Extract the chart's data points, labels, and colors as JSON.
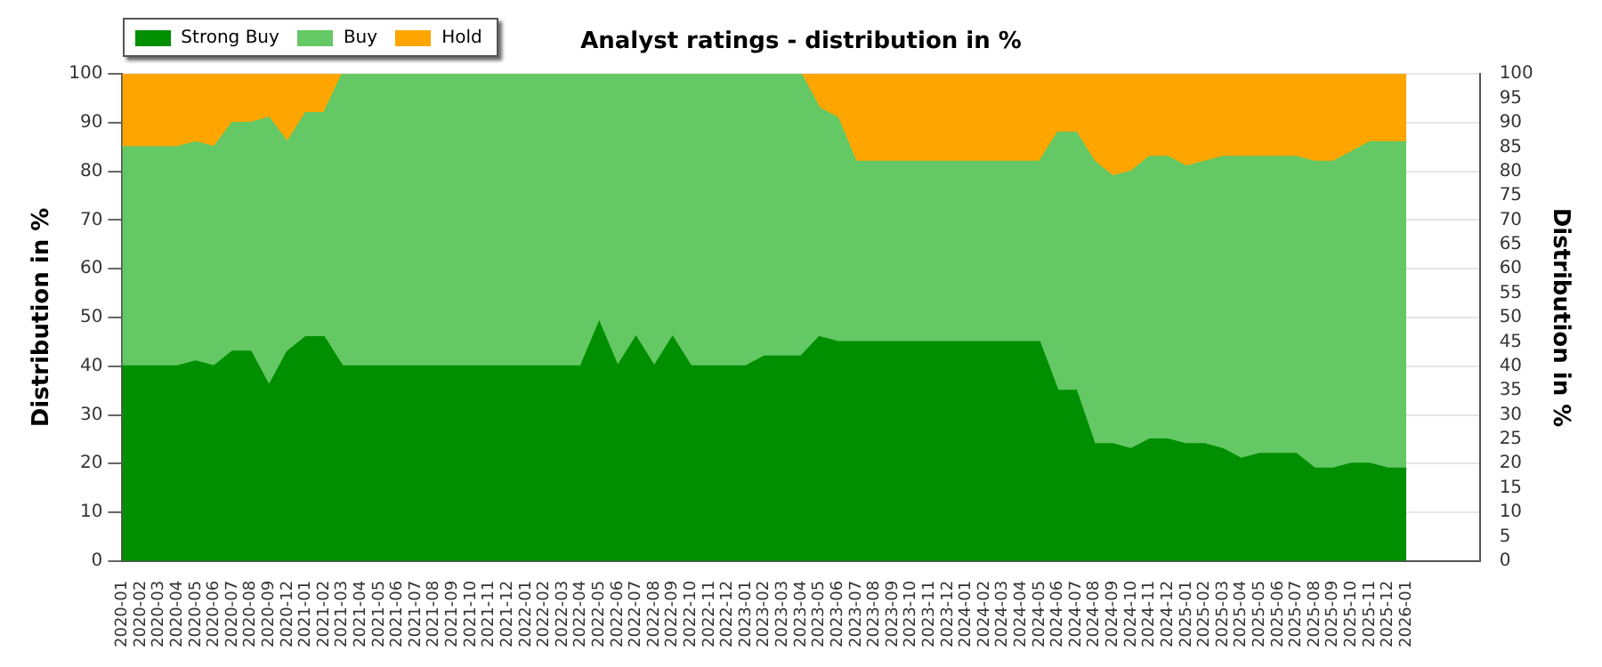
{
  "chart_data": {
    "type": "area",
    "title": "Analyst ratings - distribution in %",
    "ylabel": "Distribution in %",
    "y2label": "Distribution in %",
    "categories": [
      "2020-01",
      "2020-02",
      "2020-03",
      "2020-04",
      "2020-05",
      "2020-06",
      "2020-07",
      "2020-08",
      "2020-09",
      "2020-12",
      "2021-01",
      "2021-02",
      "2021-03",
      "2021-04",
      "2021-05",
      "2021-06",
      "2021-07",
      "2021-08",
      "2021-09",
      "2021-10",
      "2021-11",
      "2021-12",
      "2022-01",
      "2022-02",
      "2022-03",
      "2022-04",
      "2022-05",
      "2022-06",
      "2022-07",
      "2022-08",
      "2022-09",
      "2022-10",
      "2022-11",
      "2022-12",
      "2023-01",
      "2023-02",
      "2023-03",
      "2023-04",
      "2023-05",
      "2023-06",
      "2023-07",
      "2023-08",
      "2023-09",
      "2023-10",
      "2023-11",
      "2023-12",
      "2024-01",
      "2024-02",
      "2024-03",
      "2024-04",
      "2024-05",
      "2024-06",
      "2024-07",
      "2024-08",
      "2024-09",
      "2024-10",
      "2024-11",
      "2024-12",
      "2025-01",
      "2025-02",
      "2025-03",
      "2025-04",
      "2025-05",
      "2025-06",
      "2025-07",
      "2025-08",
      "2025-09",
      "2025-10",
      "2025-11",
      "2025-12",
      "2026-01"
    ],
    "series": [
      {
        "name": "Strong Buy",
        "color": "#008f00",
        "values": [
          40,
          40,
          40,
          40,
          41,
          40,
          43,
          43,
          36,
          43,
          46,
          46,
          40,
          40,
          40,
          40,
          40,
          40,
          40,
          40,
          40,
          40,
          40,
          40,
          40,
          40,
          49,
          40,
          46,
          40,
          46,
          40,
          40,
          40,
          40,
          42,
          42,
          42,
          46,
          45,
          45,
          45,
          45,
          45,
          45,
          45,
          45,
          45,
          45,
          45,
          45,
          35,
          35,
          24,
          24,
          23,
          25,
          25,
          24,
          24,
          23,
          21,
          22,
          22,
          22,
          19,
          19,
          20,
          20,
          19,
          19
        ]
      },
      {
        "name": "Buy",
        "color": "#64c864",
        "values": [
          45,
          45,
          45,
          45,
          45,
          45,
          47,
          47,
          55,
          43,
          46,
          46,
          60,
          60,
          60,
          60,
          60,
          60,
          60,
          60,
          60,
          60,
          60,
          60,
          60,
          60,
          51,
          60,
          54,
          60,
          54,
          60,
          60,
          60,
          60,
          58,
          58,
          58,
          47,
          46,
          37,
          37,
          37,
          37,
          37,
          37,
          37,
          37,
          37,
          37,
          37,
          53,
          53,
          58,
          55,
          57,
          58,
          58,
          57,
          58,
          60,
          62,
          61,
          61,
          61,
          63,
          63,
          64,
          66,
          67,
          67
        ]
      },
      {
        "name": "Hold",
        "color": "#ffa500",
        "values": [
          15,
          15,
          15,
          15,
          14,
          15,
          10,
          10,
          9,
          14,
          8,
          8,
          0,
          0,
          0,
          0,
          0,
          0,
          0,
          0,
          0,
          0,
          0,
          0,
          0,
          0,
          0,
          0,
          0,
          0,
          0,
          0,
          0,
          0,
          0,
          0,
          0,
          0,
          7,
          9,
          18,
          18,
          18,
          18,
          18,
          18,
          18,
          18,
          18,
          18,
          18,
          12,
          12,
          18,
          21,
          20,
          17,
          17,
          19,
          18,
          17,
          17,
          17,
          17,
          17,
          18,
          18,
          16,
          14,
          14,
          14
        ]
      }
    ],
    "stacked": true,
    "ylim": [
      0,
      100
    ],
    "yticks": [
      0,
      10,
      20,
      30,
      40,
      50,
      60,
      70,
      80,
      90,
      100
    ],
    "y2lim": [
      0,
      100
    ],
    "y2ticks": [
      0,
      5,
      10,
      15,
      20,
      25,
      30,
      35,
      40,
      45,
      50,
      55,
      60,
      65,
      70,
      75,
      80,
      85,
      90,
      95,
      100
    ],
    "grid": "y",
    "legend": "top left"
  }
}
